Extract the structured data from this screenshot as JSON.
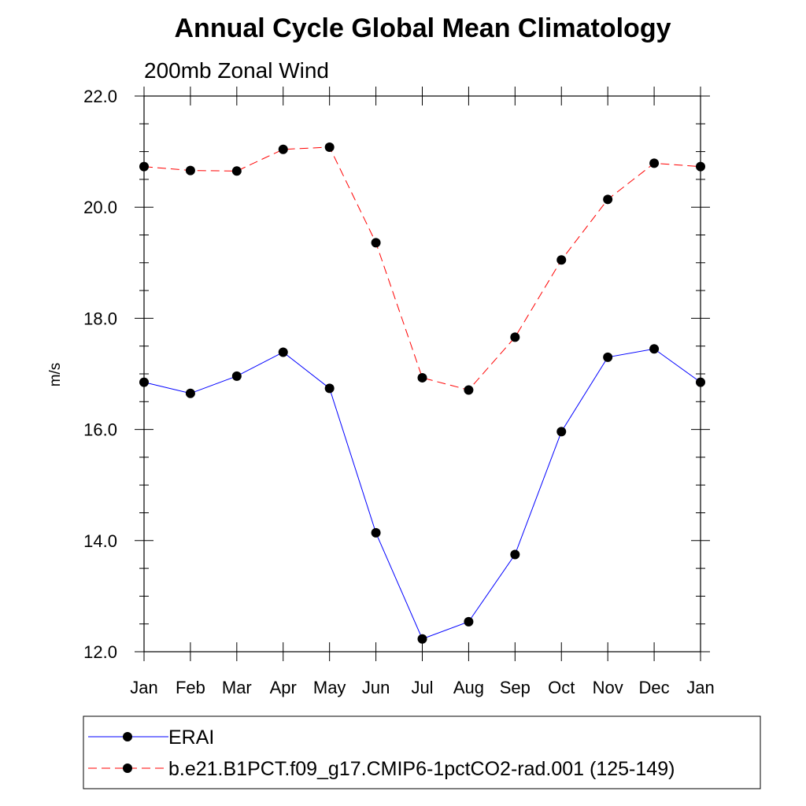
{
  "chart_data": {
    "type": "line",
    "title": "Annual Cycle Global Mean Climatology",
    "subtitle": "200mb Zonal Wind",
    "ylabel": "m/s",
    "xlabel": "",
    "ylim": [
      12.0,
      22.0
    ],
    "yticks": [
      "12.0",
      "14.0",
      "16.0",
      "18.0",
      "20.0",
      "22.0"
    ],
    "categories": [
      "Jan",
      "Feb",
      "Mar",
      "Apr",
      "May",
      "Jun",
      "Jul",
      "Aug",
      "Sep",
      "Oct",
      "Nov",
      "Dec",
      "Jan"
    ],
    "series": [
      {
        "name": "ERAI",
        "color": "#0000ff",
        "dash": "solid",
        "values": [
          16.85,
          16.65,
          16.96,
          17.39,
          16.74,
          14.14,
          12.23,
          12.54,
          13.75,
          15.96,
          17.3,
          17.45,
          16.85
        ]
      },
      {
        "name": "b.e21.B1PCT.f09_g17.CMIP6-1pctCO2-rad.001 (125-149)",
        "color": "#ff0000",
        "dash": "dashed",
        "values": [
          20.73,
          20.66,
          20.65,
          21.04,
          21.08,
          19.36,
          16.93,
          16.71,
          17.66,
          19.05,
          20.14,
          20.79,
          20.73
        ]
      }
    ],
    "legend_position": "bottom"
  }
}
